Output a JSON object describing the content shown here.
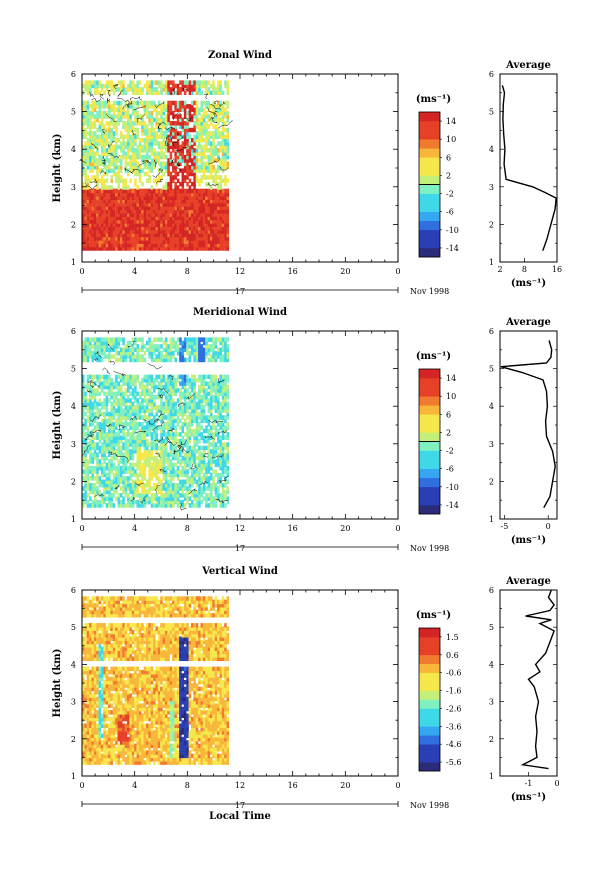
{
  "chart_data": [
    {
      "type": "heatmap",
      "title": "Zonal Wind",
      "ylabel": "Height (km)",
      "xlim": [
        0,
        24
      ],
      "ylim": [
        1,
        6
      ],
      "x_ticks": [
        "0",
        "4",
        "8",
        "12",
        "16",
        "20",
        "0"
      ],
      "y_ticks": [
        "1",
        "2",
        "3",
        "4",
        "5",
        "6"
      ],
      "date_label": "17",
      "date_suffix": "Nov 1998",
      "colorbar": {
        "unit": "(ms⁻¹)",
        "tick_labels": [
          "14",
          "10",
          "6",
          "2",
          "-2",
          "-6",
          "-10",
          "-14"
        ],
        "range": [
          -16,
          16
        ],
        "zero_line": true
      },
      "description_profile": "cells",
      "profile": {
        "title": "Average",
        "xlabel": "(ms⁻¹)",
        "x_ticks": [
          "2",
          "8",
          "16"
        ],
        "xlim": [
          2,
          16
        ],
        "ylim": [
          1,
          6
        ],
        "height": [
          1.3,
          1.6,
          2.0,
          2.4,
          2.7,
          2.85,
          3.0,
          3.2,
          3.6,
          4.0,
          4.4,
          4.8,
          5.2,
          5.5,
          5.7
        ],
        "wind": [
          12.5,
          13.5,
          14.5,
          15.5,
          15.8,
          13.0,
          10.0,
          3.5,
          3.0,
          3.2,
          2.9,
          2.7,
          2.8,
          3.1,
          2.6
        ]
      }
    },
    {
      "type": "heatmap",
      "title": "Meridional Wind",
      "ylabel": "Height (km)",
      "xlim": [
        0,
        24
      ],
      "ylim": [
        1,
        6
      ],
      "x_ticks": [
        "0",
        "4",
        "8",
        "12",
        "16",
        "20",
        "0"
      ],
      "y_ticks": [
        "1",
        "2",
        "3",
        "4",
        "5",
        "6"
      ],
      "date_label": "17",
      "date_suffix": "Nov 1998",
      "colorbar": {
        "unit": "(ms⁻¹)",
        "tick_labels": [
          "14",
          "10",
          "6",
          "2",
          "-2",
          "-6",
          "-10",
          "-14"
        ],
        "range": [
          -16,
          16
        ],
        "zero_line": true
      },
      "profile": {
        "title": "Average",
        "xlabel": "(ms⁻¹)",
        "x_ticks": [
          "-5",
          "0"
        ],
        "xlim": [
          -5.5,
          1
        ],
        "ylim": [
          1,
          6
        ],
        "height": [
          1.3,
          1.6,
          2.0,
          2.4,
          2.8,
          3.2,
          3.6,
          4.0,
          4.4,
          4.7,
          4.9,
          5.05,
          5.15,
          5.3,
          5.5,
          5.75
        ],
        "wind": [
          -0.5,
          0.2,
          0.5,
          0.8,
          0.5,
          -0.2,
          -0.3,
          -0.1,
          -0.2,
          -0.6,
          -3.0,
          -5.4,
          -0.2,
          0.3,
          0.4,
          0.1
        ]
      }
    },
    {
      "type": "heatmap",
      "title": "Vertical Wind",
      "ylabel": "Height (km)",
      "xlabel": "Local Time",
      "xlim": [
        0,
        24
      ],
      "ylim": [
        1,
        6
      ],
      "x_ticks": [
        "0",
        "4",
        "8",
        "12",
        "16",
        "20",
        "0"
      ],
      "y_ticks": [
        "1",
        "2",
        "3",
        "4",
        "5",
        "6"
      ],
      "date_label": "17",
      "date_suffix": "Nov 1998",
      "colorbar": {
        "unit": "(ms⁻¹)",
        "tick_labels": [
          "1.5",
          "0.6",
          "-0.6",
          "-1.6",
          "-2.6",
          "-3.6",
          "-4.6",
          "-5.6"
        ],
        "range": [
          -6.2,
          2.2
        ],
        "zero_line": false
      },
      "profile": {
        "title": "Average",
        "xlabel": "(ms⁻¹)",
        "x_ticks": [
          "-1",
          "0"
        ],
        "xlim": [
          -2,
          0
        ],
        "ylim": [
          1,
          6
        ],
        "height": [
          1.2,
          1.3,
          1.5,
          1.8,
          2.2,
          2.6,
          3.0,
          3.4,
          3.6,
          3.8,
          4.0,
          4.3,
          4.6,
          4.9,
          5.1,
          5.2,
          5.3,
          5.45,
          5.6,
          5.8,
          6.0
        ],
        "wind": [
          -0.3,
          -1.2,
          -0.7,
          -0.75,
          -0.7,
          -0.75,
          -0.65,
          -0.8,
          -1.0,
          -0.6,
          -0.75,
          -0.4,
          -0.25,
          -0.1,
          -0.6,
          -0.2,
          -1.1,
          -0.25,
          -0.1,
          -0.3,
          -0.2
        ]
      }
    }
  ]
}
